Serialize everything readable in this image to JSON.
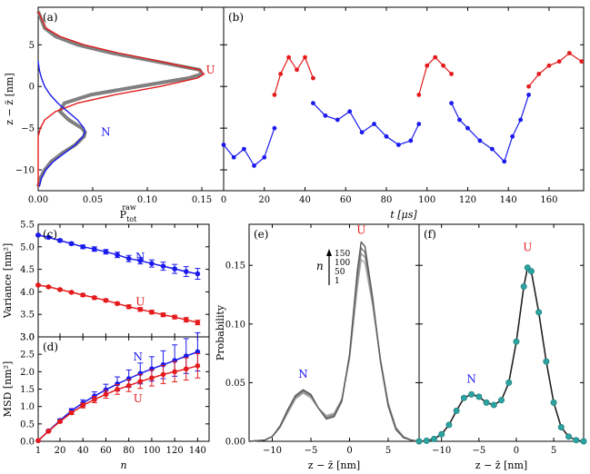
{
  "figure": {
    "colors": {
      "red": "#e41a1c",
      "blue": "#1a1aee",
      "gray": "#808080",
      "teal": "#2ba3a0",
      "dark": "#222222",
      "n_shades": [
        "#aaaaaa",
        "#999999",
        "#7d7d7d",
        "#5a5a5a",
        "#2f2f2f"
      ]
    }
  },
  "chart_data": [
    {
      "id": "a",
      "panel_label": "(a)",
      "type": "line",
      "orientation": "horizontal-density",
      "xlabel_main": "P",
      "xlabel_sup": "raw",
      "xlabel_sub": "tot",
      "ylabel": "z − z̄ [nm]",
      "xlim": [
        0,
        0.17
      ],
      "ylim": [
        -12.5,
        9.5
      ],
      "xticks": [
        0,
        0.05,
        0.1,
        0.15
      ],
      "xtick_labels": [
        "0.00",
        "0.05",
        "0.10",
        "0.15"
      ],
      "yticks": [
        -10,
        -5,
        0,
        5
      ],
      "ytick_labels": [
        "−10",
        "−5",
        "0",
        "5"
      ],
      "state_labels": [
        {
          "text": "U",
          "z": 2.0,
          "p": 0.158,
          "color": "red"
        },
        {
          "text": "N",
          "z": -5.5,
          "p": 0.062,
          "color": "blue"
        }
      ],
      "series": [
        {
          "name": "raw histogram",
          "color": "gray",
          "z": [
            9,
            7,
            6,
            5,
            4,
            3,
            2.5,
            2,
            1.5,
            1,
            0,
            -1,
            -2,
            -3,
            -4,
            -5,
            -5.5,
            -6,
            -7,
            -8,
            -9,
            -10,
            -11,
            -12
          ],
          "p": [
            0.0,
            0.006,
            0.016,
            0.036,
            0.068,
            0.108,
            0.128,
            0.148,
            0.15,
            0.138,
            0.092,
            0.048,
            0.024,
            0.02,
            0.028,
            0.04,
            0.043,
            0.042,
            0.034,
            0.022,
            0.012,
            0.006,
            0.002,
            0.0
          ]
        },
        {
          "name": "U Gaussian fit",
          "color": "red",
          "z": [
            9,
            7,
            6,
            5,
            4,
            3,
            2,
            1.5,
            1,
            0,
            -1,
            -2,
            -3,
            -4,
            -5,
            -6,
            -8,
            -10,
            -12
          ],
          "p": [
            0.0,
            0.007,
            0.02,
            0.042,
            0.074,
            0.112,
            0.148,
            0.152,
            0.146,
            0.112,
            0.07,
            0.036,
            0.016,
            0.006,
            0.002,
            0.0,
            0.0,
            0.0,
            0.0
          ]
        },
        {
          "name": "N Gaussian fit",
          "color": "blue",
          "z": [
            3,
            2,
            1,
            0,
            -1,
            -2,
            -3,
            -4,
            -5,
            -5.5,
            -6,
            -7,
            -8,
            -9,
            -10,
            -11,
            -12
          ],
          "p": [
            0.0,
            0.001,
            0.003,
            0.006,
            0.011,
            0.018,
            0.027,
            0.036,
            0.042,
            0.043,
            0.041,
            0.034,
            0.024,
            0.014,
            0.007,
            0.003,
            0.001
          ]
        }
      ]
    },
    {
      "id": "b",
      "panel_label": "(b)",
      "type": "scatter",
      "xlabel": "t [μs]",
      "xlim": [
        0,
        177
      ],
      "ylim": [
        -12.5,
        9.5
      ],
      "xticks": [
        0,
        20,
        40,
        60,
        80,
        100,
        120,
        140,
        160
      ],
      "xtick_labels": [
        "0",
        "20",
        "40",
        "60",
        "80",
        "100",
        "120",
        "140",
        "160"
      ],
      "series": [
        {
          "name": "N segment",
          "color": "blue",
          "t": [
            0,
            5,
            10,
            15,
            20,
            25
          ],
          "z": [
            -7,
            -8.5,
            -7.5,
            -9.5,
            -8.5,
            -5
          ]
        },
        {
          "name": "U segment",
          "color": "red",
          "t": [
            25,
            28,
            32,
            36,
            40,
            44
          ],
          "z": [
            -1,
            1.5,
            3.5,
            2,
            3.5,
            1
          ]
        },
        {
          "name": "N segment",
          "color": "blue",
          "t": [
            44,
            50,
            56,
            62,
            68,
            74,
            80,
            86,
            92,
            96
          ],
          "z": [
            -2,
            -3.5,
            -4,
            -3,
            -5.5,
            -4.5,
            -6,
            -7,
            -6.5,
            -4.5
          ]
        },
        {
          "name": "U segment",
          "color": "red",
          "t": [
            96,
            100,
            104,
            108,
            112
          ],
          "z": [
            -1,
            2.5,
            3.5,
            2.5,
            1.5
          ]
        },
        {
          "name": "N segment",
          "color": "blue",
          "t": [
            112,
            116,
            120,
            126,
            132,
            138,
            142,
            146,
            150
          ],
          "z": [
            -2,
            -4,
            -5,
            -6.5,
            -7.5,
            -9,
            -6,
            -4,
            -1
          ]
        },
        {
          "name": "U segment",
          "color": "red",
          "t": [
            150,
            155,
            160,
            165,
            170,
            176
          ],
          "z": [
            0,
            1.5,
            2.5,
            3,
            4,
            3
          ]
        }
      ]
    },
    {
      "id": "c",
      "panel_label": "(c)",
      "type": "line",
      "ylabel": "Variance [nm²]",
      "xlim": [
        1,
        150
      ],
      "ylim": [
        3.0,
        5.5
      ],
      "yticks": [
        3.0,
        3.5,
        4.0,
        4.5,
        5.0,
        5.5
      ],
      "ytick_labels": [
        "3.0",
        "3.5",
        "4.0",
        "4.5",
        "5.0",
        "5.5"
      ],
      "state_labels": [
        {
          "text": "N",
          "n": 90,
          "y": 4.77,
          "color": "blue"
        },
        {
          "text": "U",
          "n": 90,
          "y": 3.78,
          "color": "red"
        }
      ],
      "series": [
        {
          "name": "N",
          "color": "blue",
          "n": [
            1,
            10,
            20,
            30,
            40,
            50,
            60,
            70,
            80,
            90,
            100,
            110,
            120,
            130,
            140
          ],
          "values": [
            5.26,
            5.21,
            5.14,
            5.07,
            5.0,
            4.95,
            4.89,
            4.82,
            4.74,
            4.69,
            4.63,
            4.57,
            4.51,
            4.45,
            4.4
          ],
          "errors": [
            0.02,
            0.02,
            0.03,
            0.03,
            0.04,
            0.05,
            0.05,
            0.06,
            0.07,
            0.07,
            0.08,
            0.09,
            0.1,
            0.11,
            0.12
          ]
        },
        {
          "name": "U",
          "color": "red",
          "n": [
            1,
            10,
            20,
            30,
            40,
            50,
            60,
            70,
            80,
            90,
            100,
            110,
            120,
            130,
            140
          ],
          "values": [
            4.15,
            4.11,
            4.05,
            3.99,
            3.93,
            3.87,
            3.81,
            3.74,
            3.67,
            3.61,
            3.55,
            3.49,
            3.44,
            3.38,
            3.32
          ],
          "errors": [
            0.02,
            0.02,
            0.02,
            0.02,
            0.03,
            0.03,
            0.03,
            0.03,
            0.04,
            0.04,
            0.04,
            0.04,
            0.04,
            0.05,
            0.05
          ]
        }
      ]
    },
    {
      "id": "d",
      "panel_label": "(d)",
      "type": "line",
      "ylabel": "MSD [nm²]",
      "xlabel": "n",
      "xlim": [
        1,
        150
      ],
      "ylim": [
        0,
        3.0
      ],
      "xticks": [
        1,
        20,
        40,
        60,
        80,
        100,
        120,
        140
      ],
      "xtick_labels": [
        "1",
        "20",
        "40",
        "60",
        "80",
        "100",
        "120",
        "140"
      ],
      "yticks": [
        0.0,
        0.5,
        1.0,
        1.5,
        2.0,
        2.5,
        3.0
      ],
      "ytick_labels": [
        "0.0",
        "0.5",
        "1.0",
        "1.5",
        "2.0",
        "2.5",
        "3.0"
      ],
      "state_labels": [
        {
          "text": "N",
          "n": 88,
          "y": 2.43,
          "color": "blue"
        },
        {
          "text": "U",
          "n": 88,
          "y": 1.22,
          "color": "red"
        }
      ],
      "series": [
        {
          "name": "N",
          "color": "blue",
          "n": [
            1,
            10,
            20,
            30,
            40,
            50,
            60,
            70,
            80,
            90,
            100,
            110,
            120,
            130,
            140
          ],
          "values": [
            0.02,
            0.3,
            0.6,
            0.88,
            1.1,
            1.3,
            1.48,
            1.65,
            1.8,
            1.95,
            2.08,
            2.2,
            2.32,
            2.45,
            2.57
          ],
          "errors": [
            0.0,
            0.02,
            0.04,
            0.06,
            0.09,
            0.12,
            0.16,
            0.2,
            0.25,
            0.3,
            0.35,
            0.4,
            0.45,
            0.5,
            0.55
          ]
        },
        {
          "name": "U",
          "color": "red",
          "n": [
            1,
            10,
            20,
            30,
            40,
            50,
            60,
            70,
            80,
            90,
            100,
            110,
            120,
            130,
            140
          ],
          "values": [
            0.02,
            0.29,
            0.57,
            0.82,
            1.03,
            1.2,
            1.35,
            1.49,
            1.6,
            1.72,
            1.82,
            1.92,
            2.0,
            2.08,
            2.17
          ],
          "errors": [
            0.0,
            0.02,
            0.03,
            0.05,
            0.07,
            0.09,
            0.11,
            0.14,
            0.17,
            0.2,
            0.23,
            0.26,
            0.29,
            0.32,
            0.35
          ]
        }
      ]
    },
    {
      "id": "e",
      "panel_label": "(e)",
      "type": "line",
      "ylabel": "Probability",
      "xlabel": "z − z̄ [nm]",
      "xlim": [
        -13,
        9
      ],
      "ylim": [
        0,
        0.185
      ],
      "xticks": [
        -10,
        -5,
        0,
        5
      ],
      "xtick_labels": [
        "−10",
        "−5",
        "0",
        "5"
      ],
      "yticks": [
        0.0,
        0.05,
        0.1,
        0.15
      ],
      "ytick_labels": [
        "0.00",
        "0.05",
        "0.10",
        "0.15"
      ],
      "state_labels": [
        {
          "text": "U",
          "x": 1.5,
          "y": 0.177,
          "color": "red"
        },
        {
          "text": "N",
          "x": -6.0,
          "y": 0.054,
          "color": "blue"
        }
      ],
      "legend": {
        "symbol": "n",
        "entries": [
          "150",
          "100",
          "50",
          "1"
        ],
        "note": "arrow indicates increasing n"
      },
      "x": [
        -13,
        -11,
        -10,
        -9,
        -8,
        -7,
        -6,
        -5,
        -4,
        -3,
        -2,
        -1,
        0,
        1,
        1.5,
        2,
        3,
        4,
        5,
        6,
        7,
        8,
        9
      ],
      "series": [
        {
          "name": "n=1",
          "values": [
            0,
            0.001,
            0.004,
            0.012,
            0.024,
            0.036,
            0.041,
            0.037,
            0.028,
            0.022,
            0.024,
            0.036,
            0.07,
            0.13,
            0.155,
            0.152,
            0.115,
            0.07,
            0.033,
            0.012,
            0.004,
            0.001,
            0
          ]
        },
        {
          "name": "n=50",
          "values": [
            0,
            0.001,
            0.004,
            0.012,
            0.025,
            0.037,
            0.042,
            0.038,
            0.028,
            0.021,
            0.023,
            0.036,
            0.072,
            0.135,
            0.16,
            0.157,
            0.118,
            0.07,
            0.032,
            0.011,
            0.004,
            0.001,
            0
          ]
        },
        {
          "name": "n=100",
          "values": [
            0,
            0.001,
            0.004,
            0.012,
            0.026,
            0.038,
            0.043,
            0.039,
            0.028,
            0.02,
            0.022,
            0.035,
            0.073,
            0.14,
            0.165,
            0.161,
            0.12,
            0.069,
            0.031,
            0.011,
            0.003,
            0.001,
            0
          ]
        },
        {
          "name": "n=150",
          "values": [
            0,
            0.001,
            0.004,
            0.013,
            0.027,
            0.039,
            0.044,
            0.04,
            0.028,
            0.019,
            0.021,
            0.034,
            0.074,
            0.145,
            0.17,
            0.166,
            0.122,
            0.068,
            0.03,
            0.01,
            0.003,
            0.001,
            0
          ]
        }
      ]
    },
    {
      "id": "f",
      "panel_label": "(f)",
      "type": "line",
      "xlabel": "z − z̄ [nm]",
      "xlim": [
        -13,
        9
      ],
      "ylim": [
        0,
        0.185
      ],
      "xticks": [
        -10,
        -5,
        0,
        5
      ],
      "xtick_labels": [
        "−10",
        "−5",
        "0",
        "5"
      ],
      "state_labels": [
        {
          "text": "U",
          "x": 1.5,
          "y": 0.162,
          "color": "red"
        },
        {
          "text": "N",
          "x": -6.0,
          "y": 0.05,
          "color": "blue"
        }
      ],
      "x": [
        -13,
        -12,
        -11,
        -10,
        -9,
        -8,
        -7,
        -6,
        -5,
        -4,
        -3,
        -2,
        -1,
        0,
        1,
        1.5,
        2,
        3,
        4,
        5,
        6,
        7,
        8,
        9
      ],
      "series": [
        {
          "name": "model",
          "color": "dark",
          "values": [
            0,
            0.0005,
            0.002,
            0.006,
            0.014,
            0.026,
            0.037,
            0.04,
            0.038,
            0.033,
            0.031,
            0.035,
            0.05,
            0.085,
            0.132,
            0.148,
            0.145,
            0.11,
            0.068,
            0.033,
            0.012,
            0.004,
            0.001,
            0
          ]
        },
        {
          "name": "reweighted data",
          "color": "teal",
          "markers": true,
          "values": [
            0,
            0.0005,
            0.002,
            0.006,
            0.014,
            0.026,
            0.037,
            0.04,
            0.038,
            0.033,
            0.031,
            0.035,
            0.05,
            0.085,
            0.132,
            0.148,
            0.145,
            0.11,
            0.068,
            0.033,
            0.012,
            0.004,
            0.001,
            0
          ]
        }
      ]
    }
  ]
}
